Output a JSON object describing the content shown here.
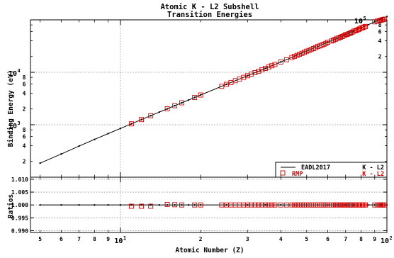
{
  "chart_data": {
    "type": "line",
    "title": "Atomic K - L2 Subshell",
    "subtitle": "Transition Energies",
    "xlabel": "Atomic Number (Z)",
    "xscale": "log",
    "xlim": [
      4.6,
      100
    ],
    "x_major_ticks": [
      {
        "value": 10,
        "base": "10",
        "exp": "1"
      },
      {
        "value": 100,
        "base": "10",
        "exp": "2"
      }
    ],
    "x_minor_ticks": [
      5,
      6,
      7,
      8,
      9,
      20,
      30,
      40,
      50,
      60,
      70,
      80,
      90
    ],
    "x_minor_labels": [
      "5",
      "6",
      "7",
      "8",
      "9",
      "2",
      "3",
      "4",
      "5",
      "6",
      "7",
      "8",
      "9"
    ],
    "panels": [
      {
        "name": "energy",
        "ylabel": "Binding Energy (eV)",
        "yscale": "log",
        "ylim": [
          100,
          100000
        ],
        "y_major_ticks": [
          {
            "value": 1000,
            "base": "10",
            "exp": "3"
          },
          {
            "value": 10000,
            "base": "10",
            "exp": "4"
          },
          {
            "value": 100000,
            "base": "10",
            "exp": "5"
          }
        ],
        "y_minor_ticks": [
          200,
          400,
          600,
          800,
          2000,
          4000,
          6000,
          8000,
          20000,
          40000,
          60000,
          80000
        ],
        "y_minor_labels": [
          "2",
          "4",
          "6",
          "8",
          "2",
          "4",
          "6",
          "8",
          "2",
          "4",
          "6",
          "8"
        ],
        "grid": true,
        "legend_position": "bottom-right",
        "series": [
          {
            "name": "EADL2017",
            "label": "K - L2",
            "color": "#000000",
            "style": "line-with-dots",
            "x": [
              5,
              6,
              7,
              8,
              9,
              10,
              11,
              12,
              13,
              14,
              15,
              16,
              17,
              18,
              19,
              20,
              25,
              30,
              35,
              40,
              45,
              50,
              55,
              60,
              65,
              70,
              75,
              80,
              85,
              90,
              95,
              100
            ],
            "y": [
              185,
              277,
              392,
              525,
              677,
              849,
              1041,
              1254,
              1487,
              1740,
              2013,
              2308,
              2622,
              2957,
              3313,
              3691,
              5899,
              8616,
              11877,
              15746,
              20216,
              25270,
              31000,
              37380,
              44400,
              52170,
              60800,
              70200,
              80500,
              91700,
              103500,
              115600
            ]
          },
          {
            "name": "RMP",
            "label": "K - L2",
            "color": "#cc0000",
            "style": "open-square",
            "x": [
              11,
              12,
              13,
              15,
              16,
              17,
              19,
              20,
              24,
              25,
              26,
              27,
              28,
              29,
              30,
              31,
              32,
              33,
              34,
              35,
              36,
              37,
              38,
              40,
              42,
              44,
              45,
              46,
              47,
              48,
              49,
              50,
              51,
              52,
              53,
              54,
              55,
              56,
              57,
              58,
              59,
              60,
              62,
              63,
              64,
              65,
              66,
              67,
              68,
              69,
              70,
              71,
              72,
              73,
              74,
              75,
              76,
              77,
              78,
              79,
              80,
              81,
              82,
              83,
              90,
              92,
              94,
              95,
              96,
              97,
              98
            ],
            "y": [
              1041,
              1254,
              1487,
              2013,
              2308,
              2622,
              3313,
              3691,
              5400,
              5899,
              6391,
              6915,
              7461,
              8028,
              8616,
              9225,
              9855,
              10508,
              11182,
              11877,
              12595,
              13336,
              14098,
              15746,
              17374,
              19151,
              20216,
              21020,
              21990,
              22984,
              24002,
              25270,
              26111,
              27202,
              28317,
              29458,
              31000,
              31817,
              33034,
              34279,
              35550,
              37380,
              39522,
              40902,
              42309,
              44400,
              45208,
              46700,
              48221,
              49772,
              52170,
              52965,
              54611,
              56280,
              57982,
              60800,
              61486,
              63287,
              65122,
              66991,
              70200,
              70832,
              72805,
              74815,
              91700,
              94665,
              97470,
              98700,
              100105,
              101640,
              103025
            ]
          }
        ]
      },
      {
        "name": "ratios",
        "ylabel": "Ratios",
        "yscale": "linear",
        "ylim": [
          0.9893,
          1.0108
        ],
        "y_ticks": [
          0.99,
          0.995,
          1.0,
          1.005,
          1.01
        ],
        "y_tick_labels": [
          "0.990",
          "0.995",
          "1.000",
          "1.005",
          "1.010"
        ],
        "grid": true,
        "series": [
          {
            "name": "EADL2017",
            "color": "#000000",
            "style": "line-with-dots",
            "x": [
              5,
              6,
              7,
              8,
              9,
              10,
              11,
              12,
              13,
              14,
              15,
              16,
              17,
              18,
              19,
              20,
              25,
              30,
              35,
              40,
              45,
              50,
              55,
              60,
              65,
              70,
              75,
              80,
              85,
              90,
              95,
              100
            ],
            "y": [
              1.0,
              1.0,
              1.0,
              1.0,
              1.0,
              1.0,
              1.0,
              1.0,
              1.0,
              1.0,
              1.0,
              1.0,
              1.0,
              1.0,
              1.0,
              1.0,
              1.0,
              1.0,
              1.0,
              1.0,
              1.0,
              1.0,
              1.0,
              1.0,
              1.0,
              1.0,
              1.0,
              1.0,
              1.0,
              1.0,
              1.0,
              1.0
            ]
          },
          {
            "name": "RMP",
            "color": "#cc0000",
            "style": "open-square",
            "x": [
              11,
              12,
              13,
              15,
              16,
              17,
              19,
              20,
              24,
              25,
              26,
              27,
              28,
              29,
              30,
              31,
              32,
              33,
              34,
              35,
              36,
              37,
              38,
              40,
              42,
              44,
              45,
              46,
              47,
              48,
              49,
              50,
              51,
              52,
              53,
              54,
              55,
              56,
              57,
              58,
              59,
              60,
              62,
              63,
              64,
              65,
              66,
              67,
              68,
              69,
              70,
              71,
              72,
              73,
              74,
              75,
              76,
              77,
              78,
              79,
              80,
              81,
              82,
              83,
              90,
              92,
              94,
              95,
              96,
              97,
              98
            ],
            "y": [
              0.9995,
              0.9995,
              0.9995,
              1.0002,
              1.0001,
              1.0,
              1.0,
              1.0,
              1.0,
              1.0,
              1.0,
              1.0,
              1.0,
              1.0,
              1.0,
              1.0,
              1.0,
              1.0,
              1.0,
              1.0,
              1.0,
              1.0,
              1.0,
              1.0,
              1.0,
              1.0,
              1.0,
              1.0,
              1.0,
              1.0,
              1.0,
              1.0,
              1.0,
              1.0,
              1.0,
              1.0,
              1.0,
              1.0,
              1.0,
              1.0,
              1.0,
              1.0,
              1.0,
              1.0,
              1.0,
              1.0,
              1.0,
              1.0,
              1.0,
              1.0,
              1.0,
              1.0,
              1.0,
              1.0,
              1.0,
              1.0,
              1.0,
              1.0,
              1.0,
              1.0,
              1.0,
              1.0,
              1.0,
              1.0,
              1.0,
              1.0,
              1.0,
              1.0,
              1.0,
              1.0,
              1.0
            ]
          }
        ]
      }
    ]
  }
}
